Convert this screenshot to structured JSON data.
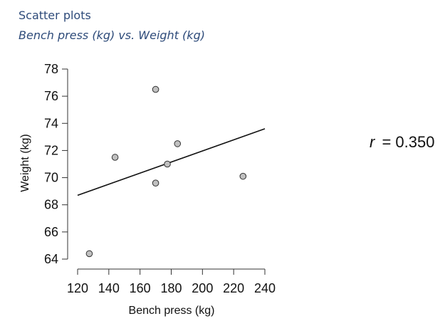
{
  "page": {
    "heading": "Scatter plots",
    "subheading": "Bench press (kg) vs. Weight (kg)"
  },
  "chart_data": {
    "type": "scatter",
    "xlabel": "Bench press (kg)",
    "ylabel": "Weight (kg)",
    "xlim": [
      120,
      240
    ],
    "ylim": [
      64,
      78
    ],
    "xticks": [
      "120",
      "140",
      "160",
      "180",
      "200",
      "220",
      "240"
    ],
    "yticks": [
      "64",
      "66",
      "68",
      "70",
      "72",
      "74",
      "76",
      "78"
    ],
    "points": [
      {
        "x": 127.5,
        "y": 64.4
      },
      {
        "x": 144,
        "y": 71.5
      },
      {
        "x": 170,
        "y": 76.5
      },
      {
        "x": 170,
        "y": 69.6
      },
      {
        "x": 177.5,
        "y": 71.0
      },
      {
        "x": 184,
        "y": 72.5
      },
      {
        "x": 226,
        "y": 70.1
      }
    ],
    "regression_line": {
      "x0": 120,
      "y0": 68.7,
      "x1": 240,
      "y1": 73.6
    },
    "grid": false,
    "annotation": {
      "r_symbol": "r",
      "r_value": "= 0.350"
    },
    "colors": {
      "point_fill": "#c0c0c0",
      "point_stroke": "#333333",
      "line": "#111111",
      "heading": "#2e4b7a"
    }
  }
}
